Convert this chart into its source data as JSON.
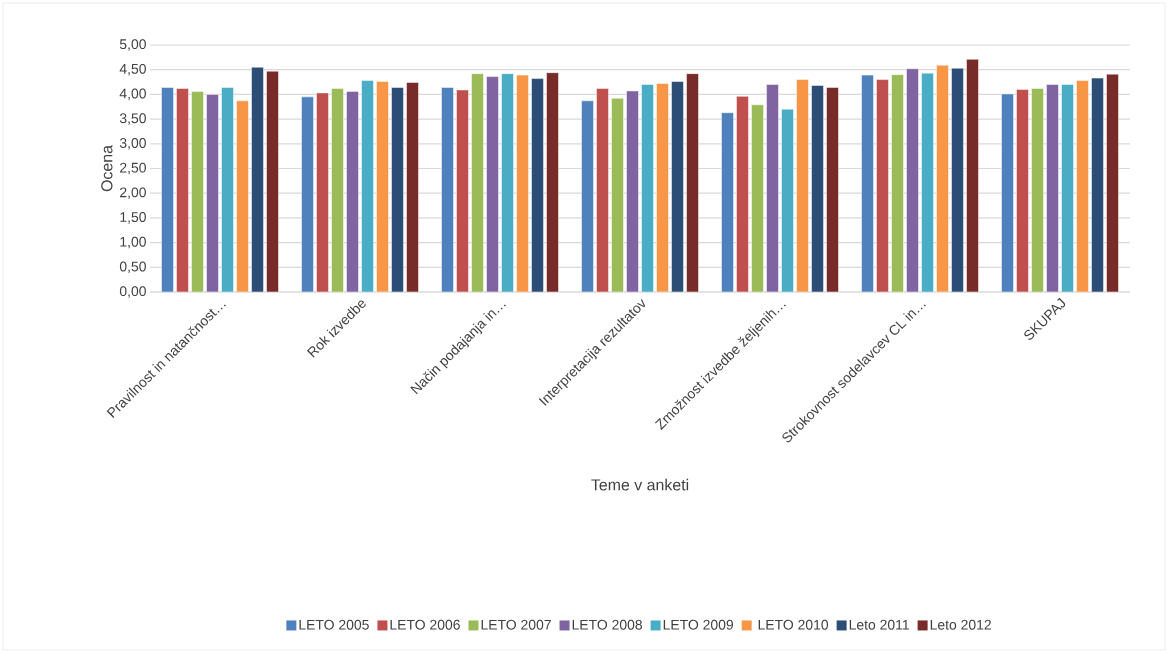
{
  "chart_data": {
    "type": "bar",
    "xlabel": "Teme v anketi",
    "ylabel": "Ocena",
    "categories": [
      "Pravilnost in natančnost…",
      "Rok izvedbe",
      "Način podajanja in…",
      "Interpretacija rezultatov",
      "Zmožnost izvedbe željenih…",
      "Strokovnost sodelavcev CL in…",
      "SKUPAJ"
    ],
    "series": [
      {
        "name": "LETO 2005",
        "color": "#4f81bd",
        "values": [
          4.14,
          3.95,
          4.14,
          3.87,
          3.63,
          4.39,
          4.01
        ]
      },
      {
        "name": "LETO 2006",
        "color": "#c0504d",
        "values": [
          4.12,
          4.03,
          4.09,
          4.12,
          3.96,
          4.3,
          4.1
        ]
      },
      {
        "name": "LETO 2007",
        "color": "#9bbb59",
        "values": [
          4.06,
          4.12,
          4.42,
          3.92,
          3.79,
          4.4,
          4.12
        ]
      },
      {
        "name": "LETO 2008",
        "color": "#8064a2",
        "values": [
          4.0,
          4.06,
          4.36,
          4.07,
          4.2,
          4.52,
          4.2
        ]
      },
      {
        "name": "LETO 2009",
        "color": "#4bacc6",
        "values": [
          4.14,
          4.28,
          4.42,
          4.2,
          3.7,
          4.43,
          4.2
        ]
      },
      {
        "name": " LETO 2010",
        "color": "#f79646",
        "values": [
          3.87,
          4.26,
          4.39,
          4.22,
          4.3,
          4.59,
          4.28
        ]
      },
      {
        "name": "Leto 2011",
        "color": "#2c4d75",
        "values": [
          4.55,
          4.14,
          4.32,
          4.26,
          4.18,
          4.53,
          4.33
        ]
      },
      {
        "name": "Leto 2012",
        "color": "#772c2a",
        "values": [
          4.47,
          4.24,
          4.44,
          4.42,
          4.14,
          4.71,
          4.41
        ]
      }
    ],
    "ylim": [
      0,
      5
    ],
    "yticks": [
      {
        "value": 0,
        "label": "0,00"
      },
      {
        "value": 0.5,
        "label": "0,50"
      },
      {
        "value": 1,
        "label": "1,00"
      },
      {
        "value": 1.5,
        "label": "1,50"
      },
      {
        "value": 2,
        "label": "2,00"
      },
      {
        "value": 2.5,
        "label": "2,50"
      },
      {
        "value": 3,
        "label": "3,00"
      },
      {
        "value": 3.5,
        "label": "3,50"
      },
      {
        "value": 4,
        "label": "4,00"
      },
      {
        "value": 4.5,
        "label": "4,50"
      },
      {
        "value": 5,
        "label": "5,00"
      }
    ],
    "grid": "y",
    "legend": "bottom"
  }
}
